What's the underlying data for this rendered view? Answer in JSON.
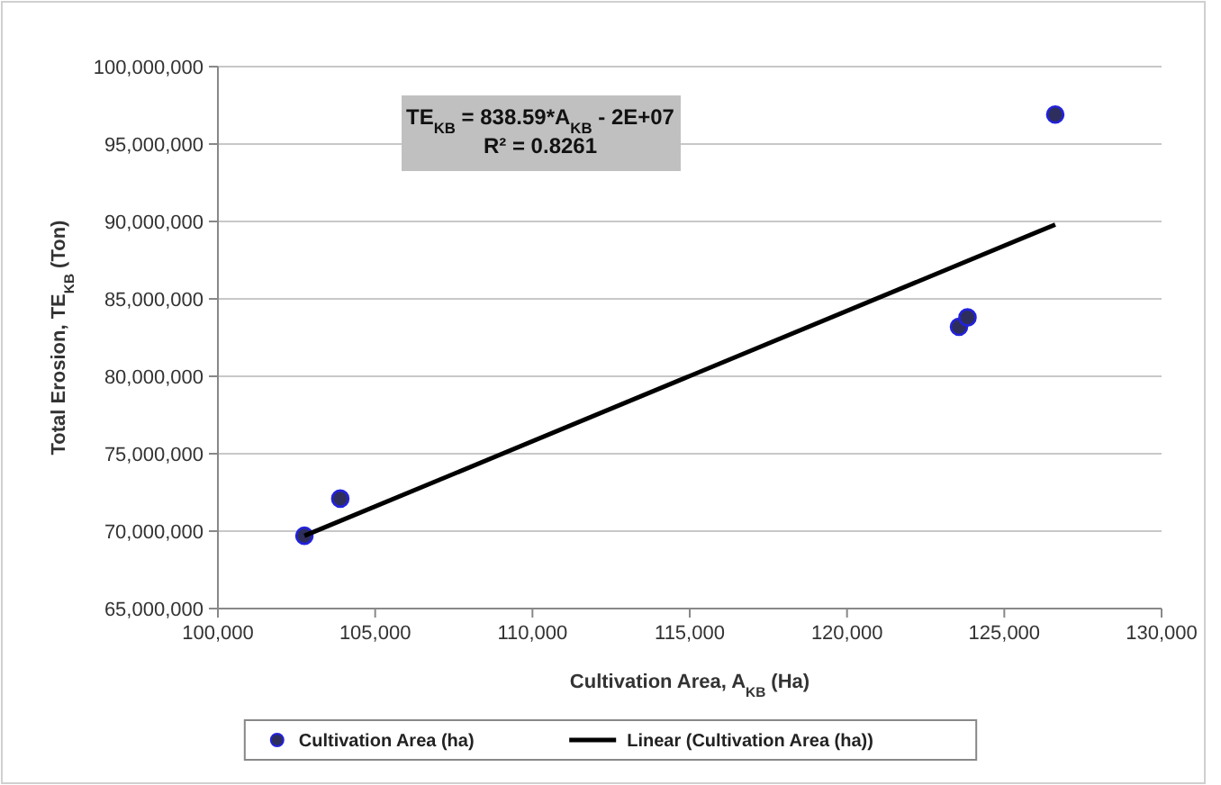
{
  "chart_data": {
    "type": "scatter",
    "xlabel": "Cultivation Area, A$_{KB}$ (Ha)",
    "ylabel": "Total Erosion, TE$_{KB}$ (Ton)",
    "xlim": [
      100000,
      130000
    ],
    "xticks": [
      {
        "value": 100000,
        "label": "100,000"
      },
      {
        "value": 105000,
        "label": "105,000"
      },
      {
        "value": 110000,
        "label": "110,000"
      },
      {
        "value": 115000,
        "label": "115,000"
      },
      {
        "value": 120000,
        "label": "120,000"
      },
      {
        "value": 125000,
        "label": "125,000"
      },
      {
        "value": 130000,
        "label": "130,000"
      }
    ],
    "ylim": [
      65000000,
      100000000
    ],
    "yticks": [
      {
        "value": 65000000,
        "label": "65,000,000"
      },
      {
        "value": 70000000,
        "label": "70,000,000"
      },
      {
        "value": 75000000,
        "label": "75,000,000"
      },
      {
        "value": 80000000,
        "label": "80,000,000"
      },
      {
        "value": 85000000,
        "label": "85,000,000"
      },
      {
        "value": 90000000,
        "label": "90,000,000"
      },
      {
        "value": 95000000,
        "label": "95,000,000"
      },
      {
        "value": 100000000,
        "label": "100,000,000"
      }
    ],
    "grid": "y",
    "legend": "bottom",
    "annotations": [
      "TE$_{KB}$ = 838.59*A$_{KB}$ - 2E+07",
      "R² = 0.8261"
    ],
    "series": [
      {
        "name": "Cultivation Area (ha)",
        "color": "#2e2e5c",
        "marker": "circle",
        "x": [
          102750,
          103890,
          123560,
          123830,
          126620
        ],
        "values": [
          69700000,
          72100000,
          83200000,
          83800000,
          96900000
        ]
      },
      {
        "name": "Linear (Cultivation Area (ha))",
        "type": "line",
        "color": "#000000",
        "line_style": "solid",
        "marker": "none",
        "x": [
          102750,
          126620
        ],
        "values": [
          69700000,
          89800000
        ]
      }
    ]
  }
}
